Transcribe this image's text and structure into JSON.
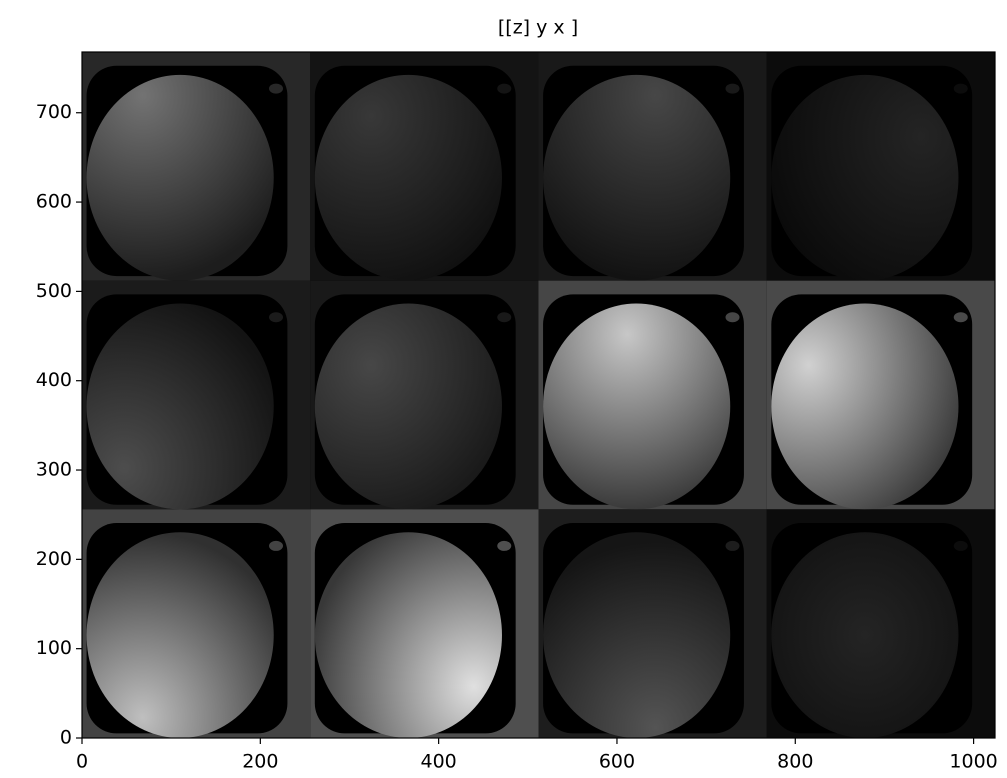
{
  "chart_data": {
    "type": "image",
    "title": "[[z] y  x ]",
    "xlim": [
      0,
      1024
    ],
    "ylim": [
      0,
      768
    ],
    "xticks": [
      0,
      200,
      400,
      600,
      800,
      1000
    ],
    "yticks": [
      0,
      100,
      200,
      300,
      400,
      500,
      600,
      700
    ]
  }
}
